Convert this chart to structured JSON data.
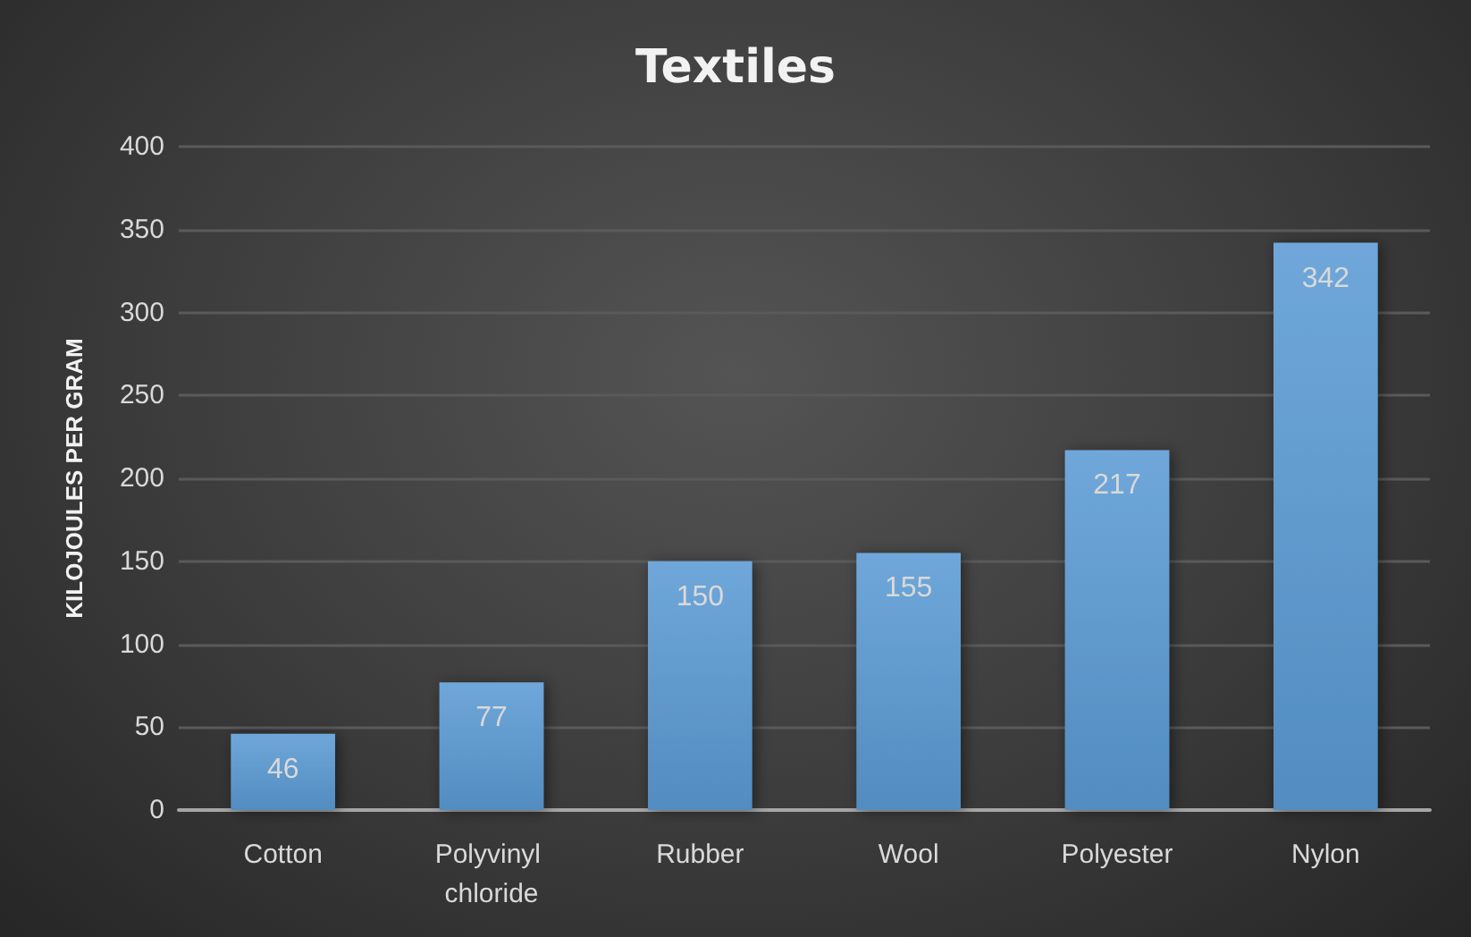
{
  "chart_data": {
    "type": "bar",
    "title": "Textiles",
    "ylabel": "KILOJOULES PER GRAM",
    "categories": [
      "Cotton",
      "Polyvinyl chloride",
      "Rubber",
      "Wool",
      "Polyester",
      "Nylon"
    ],
    "values": [
      46,
      77,
      150,
      155,
      217,
      342
    ],
    "color": "#5b9bd5",
    "ylim": [
      0,
      400
    ],
    "yticks": [
      0,
      50,
      100,
      150,
      200,
      250,
      300,
      350,
      400
    ],
    "grid": "y",
    "data_labels": true
  }
}
